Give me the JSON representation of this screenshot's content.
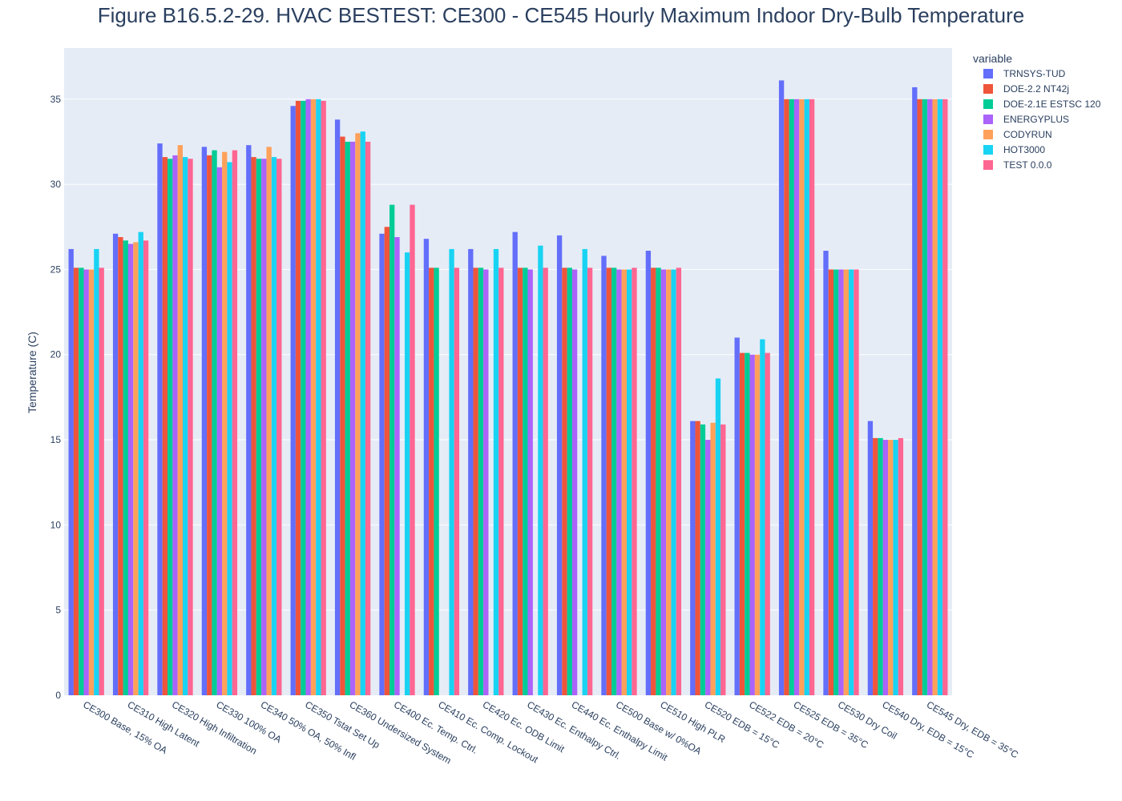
{
  "chart_data": {
    "type": "bar",
    "title": "Figure B16.5.2-29. HVAC BESTEST: CE300 - CE545 Hourly Maximum Indoor Dry-Bulb Temperature",
    "xlabel": "",
    "ylabel": "Temperature (C)",
    "ylim": [
      0,
      38
    ],
    "yticks": [
      0,
      5,
      10,
      15,
      20,
      25,
      30,
      35
    ],
    "grid": true,
    "legend_title": "variable",
    "legend_position": "top-right",
    "categories": [
      "CE300 Base, 15% OA",
      "CE310 High Latent",
      "CE320 High Infiltration",
      "CE330 100% OA",
      "CE340 50% OA, 50% Infl",
      "CE350 Tstat Set Up",
      "CE360 Undersized System",
      "CE400 Ec. Temp. Ctrl.",
      "CE410 Ec. Comp. Lockout",
      "CE420 Ec. ODB Limit",
      "CE430 Ec. Enthalpy Ctrl.",
      "CE440 Ec. Enthalpy Limit",
      "CE500 Base w/ 0%OA",
      "CE510 High PLR",
      "CE520 EDB = 15°C",
      "CE522 EDB = 20°C",
      "CE525 EDB = 35°C",
      "CE530 Dry Coil",
      "CE540 Dry, EDB = 15°C",
      "CE545 Dry, EDB = 35°C"
    ],
    "series": [
      {
        "name": "TRNSYS-TUD",
        "color": "#636efa",
        "values": [
          26.2,
          27.1,
          32.4,
          32.2,
          32.3,
          34.6,
          33.8,
          27.1,
          26.8,
          26.2,
          27.2,
          27.0,
          25.8,
          26.1,
          16.1,
          21.0,
          36.1,
          26.1,
          16.1,
          35.7
        ]
      },
      {
        "name": "DOE-2.2 NT42j",
        "color": "#ef553b",
        "values": [
          25.1,
          26.9,
          31.6,
          31.7,
          31.6,
          34.9,
          32.8,
          27.5,
          25.1,
          25.1,
          25.1,
          25.1,
          25.1,
          25.1,
          16.1,
          20.1,
          35.0,
          25.0,
          15.1,
          35.0
        ]
      },
      {
        "name": "DOE-2.1E ESTSC 120",
        "color": "#00cc96",
        "values": [
          25.1,
          26.7,
          31.5,
          32.0,
          31.5,
          34.9,
          32.5,
          28.8,
          25.1,
          25.1,
          25.1,
          25.1,
          25.1,
          25.1,
          15.9,
          20.1,
          35.0,
          25.0,
          15.1,
          35.0
        ]
      },
      {
        "name": "ENERGYPLUS",
        "color": "#ab63fa",
        "values": [
          25.0,
          26.5,
          31.7,
          31.0,
          31.5,
          35.0,
          32.5,
          26.9,
          null,
          25.0,
          25.0,
          25.0,
          25.0,
          25.0,
          15.0,
          20.0,
          35.0,
          25.0,
          15.0,
          35.0
        ]
      },
      {
        "name": "CODYRUN",
        "color": "#ffa15a",
        "values": [
          25.0,
          26.6,
          32.3,
          31.9,
          32.2,
          35.0,
          33.0,
          null,
          null,
          null,
          null,
          null,
          25.0,
          25.0,
          16.0,
          20.0,
          35.0,
          25.0,
          15.0,
          35.0
        ]
      },
      {
        "name": "HOT3000",
        "color": "#19d3f3",
        "values": [
          26.2,
          27.2,
          31.6,
          31.3,
          31.6,
          35.0,
          33.1,
          26.0,
          26.2,
          26.2,
          26.4,
          26.2,
          25.0,
          25.0,
          18.6,
          20.9,
          35.0,
          25.0,
          15.0,
          35.0
        ]
      },
      {
        "name": "TEST 0.0.0",
        "color": "#ff6692",
        "values": [
          25.1,
          26.7,
          31.5,
          32.0,
          31.5,
          34.9,
          32.5,
          28.8,
          25.1,
          25.1,
          25.1,
          25.1,
          25.1,
          25.1,
          15.9,
          20.1,
          35.0,
          25.0,
          15.1,
          35.0
        ]
      }
    ]
  },
  "colors": {
    "plot_background": "#e5ecf6",
    "grid": "#ffffff",
    "text": "#2a3f5f"
  }
}
